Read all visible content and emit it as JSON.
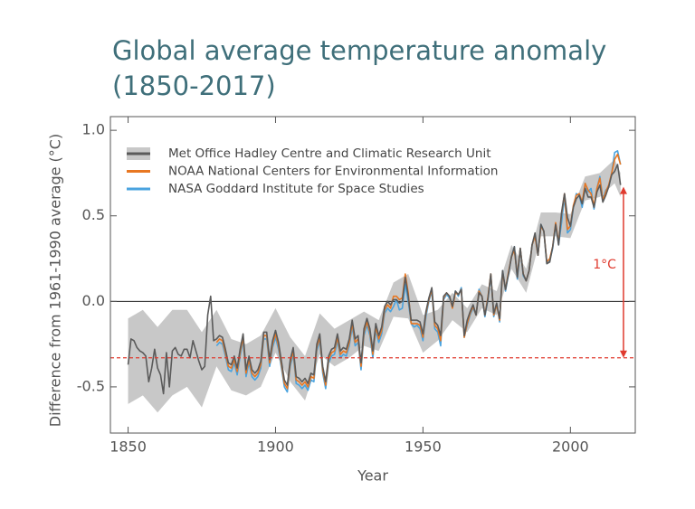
{
  "chart_data": {
    "type": "line",
    "title": [
      "Global average temperature anomaly",
      "(1850-2017)"
    ],
    "xlabel": "Year",
    "ylabel": "Difference from 1961-1990 average (°C)",
    "xlim": [
      1844,
      2022
    ],
    "ylim": [
      -0.77,
      1.08
    ],
    "xticks": [
      1850,
      1900,
      1950,
      2000
    ],
    "yticks": [
      {
        "value": 1.0,
        "label": "1.0"
      },
      {
        "value": 0.5,
        "label": "0.5"
      },
      {
        "value": 0.0,
        "label": "0.0"
      },
      {
        "value": -0.5,
        "label": "-0.5"
      }
    ],
    "zero_line": 0,
    "reference_line": {
      "value": -0.33,
      "color": "#e03a2e"
    },
    "annotation": {
      "text": "1°C",
      "x": 2018,
      "from": -0.33,
      "to": 0.67,
      "color": "#e03a2e"
    },
    "band": {
      "color": "#c8c8c8",
      "x": [
        1850,
        1855,
        1860,
        1865,
        1870,
        1875,
        1880,
        1885,
        1890,
        1895,
        1900,
        1905,
        1910,
        1915,
        1920,
        1925,
        1930,
        1935,
        1940,
        1945,
        1950,
        1955,
        1960,
        1965,
        1970,
        1975,
        1980,
        1985,
        1990,
        1995,
        2000,
        2005,
        2010,
        2015,
        2017
      ],
      "lower": [
        -0.6,
        -0.55,
        -0.65,
        -0.55,
        -0.5,
        -0.62,
        -0.38,
        -0.52,
        -0.55,
        -0.5,
        -0.3,
        -0.47,
        -0.58,
        -0.31,
        -0.38,
        -0.33,
        -0.26,
        -0.29,
        -0.09,
        -0.1,
        -0.3,
        -0.23,
        -0.11,
        -0.18,
        -0.04,
        -0.08,
        0.19,
        0.05,
        0.38,
        0.38,
        0.37,
        0.59,
        0.61,
        0.69,
        0.61
      ],
      "upper": [
        -0.1,
        -0.05,
        -0.15,
        -0.05,
        -0.05,
        -0.18,
        -0.05,
        -0.22,
        -0.25,
        -0.2,
        -0.04,
        -0.21,
        -0.32,
        -0.07,
        -0.16,
        -0.11,
        -0.06,
        -0.11,
        0.11,
        0.16,
        -0.08,
        -0.05,
        0.05,
        -0.04,
        0.1,
        0.06,
        0.33,
        0.19,
        0.52,
        0.52,
        0.51,
        0.73,
        0.75,
        0.83,
        0.75
      ]
    },
    "x_start": 1850,
    "series": [
      {
        "name": "Met Office Hadley Centre and Climatic Research Unit",
        "color": "#5a5a5a",
        "values": [
          -0.37,
          -0.22,
          -0.23,
          -0.27,
          -0.29,
          -0.3,
          -0.32,
          -0.47,
          -0.39,
          -0.28,
          -0.39,
          -0.43,
          -0.54,
          -0.3,
          -0.5,
          -0.29,
          -0.27,
          -0.31,
          -0.32,
          -0.28,
          -0.28,
          -0.33,
          -0.23,
          -0.29,
          -0.35,
          -0.4,
          -0.38,
          -0.08,
          0.03,
          -0.23,
          -0.22,
          -0.2,
          -0.21,
          -0.28,
          -0.36,
          -0.37,
          -0.32,
          -0.39,
          -0.28,
          -0.19,
          -0.4,
          -0.32,
          -0.4,
          -0.42,
          -0.4,
          -0.35,
          -0.18,
          -0.18,
          -0.34,
          -0.23,
          -0.17,
          -0.24,
          -0.35,
          -0.46,
          -0.49,
          -0.34,
          -0.27,
          -0.44,
          -0.45,
          -0.47,
          -0.45,
          -0.48,
          -0.42,
          -0.43,
          -0.25,
          -0.19,
          -0.38,
          -0.47,
          -0.32,
          -0.28,
          -0.27,
          -0.19,
          -0.29,
          -0.27,
          -0.28,
          -0.22,
          -0.11,
          -0.22,
          -0.2,
          -0.36,
          -0.16,
          -0.1,
          -0.16,
          -0.29,
          -0.13,
          -0.2,
          -0.15,
          -0.03,
          -0.0,
          -0.02,
          0.01,
          0.01,
          -0.01,
          -0.0,
          0.14,
          0.03,
          -0.11,
          -0.11,
          -0.11,
          -0.12,
          -0.19,
          -0.06,
          0.02,
          0.08,
          -0.12,
          -0.14,
          -0.2,
          0.03,
          0.05,
          0.03,
          -0.03,
          0.06,
          0.04,
          0.07,
          -0.2,
          -0.11,
          -0.06,
          -0.02,
          -0.08,
          0.05,
          0.03,
          -0.08,
          0.01,
          0.16,
          -0.07,
          -0.01,
          -0.1,
          0.18,
          0.07,
          0.16,
          0.26,
          0.32,
          0.14,
          0.31,
          0.16,
          0.12,
          0.18,
          0.33,
          0.4,
          0.27,
          0.45,
          0.41,
          0.22,
          0.23,
          0.32,
          0.45,
          0.33,
          0.52,
          0.63,
          0.49,
          0.44,
          0.55,
          0.6,
          0.62,
          0.57,
          0.66,
          0.61,
          0.61,
          0.55,
          0.64,
          0.68,
          0.58,
          0.62,
          0.67,
          0.74,
          0.76,
          0.8,
          0.68
        ]
      },
      {
        "name": "NOAA National Centers for Environmental Information",
        "color": "#e87722",
        "values": [
          null,
          null,
          null,
          null,
          null,
          null,
          null,
          null,
          null,
          null,
          null,
          null,
          null,
          null,
          null,
          null,
          null,
          null,
          null,
          null,
          null,
          null,
          null,
          null,
          null,
          null,
          null,
          null,
          null,
          null,
          -0.24,
          -0.22,
          -0.23,
          -0.3,
          -0.38,
          -0.39,
          -0.34,
          -0.41,
          -0.3,
          -0.21,
          -0.42,
          -0.34,
          -0.42,
          -0.44,
          -0.42,
          -0.37,
          -0.2,
          -0.2,
          -0.36,
          -0.25,
          -0.19,
          -0.26,
          -0.37,
          -0.48,
          -0.51,
          -0.36,
          -0.29,
          -0.46,
          -0.47,
          -0.49,
          -0.47,
          -0.5,
          -0.44,
          -0.45,
          -0.27,
          -0.21,
          -0.4,
          -0.49,
          -0.34,
          -0.3,
          -0.29,
          -0.21,
          -0.31,
          -0.29,
          -0.3,
          -0.24,
          -0.13,
          -0.24,
          -0.22,
          -0.38,
          -0.18,
          -0.12,
          -0.18,
          -0.31,
          -0.15,
          -0.22,
          -0.17,
          -0.05,
          -0.02,
          -0.04,
          0.03,
          0.03,
          0.01,
          0.02,
          0.16,
          0.05,
          -0.13,
          -0.13,
          -0.13,
          -0.14,
          -0.21,
          -0.07,
          0.01,
          0.07,
          -0.14,
          -0.16,
          -0.23,
          0.02,
          0.05,
          0.03,
          -0.04,
          0.05,
          0.04,
          0.07,
          -0.21,
          -0.13,
          -0.07,
          -0.03,
          -0.08,
          0.06,
          0.03,
          -0.08,
          0.02,
          0.16,
          -0.08,
          -0.02,
          -0.11,
          0.17,
          0.07,
          0.17,
          0.26,
          0.3,
          0.15,
          0.31,
          0.16,
          0.12,
          0.18,
          0.33,
          0.38,
          0.27,
          0.44,
          0.41,
          0.23,
          0.25,
          0.32,
          0.46,
          0.34,
          0.51,
          0.63,
          0.42,
          0.44,
          0.56,
          0.62,
          0.63,
          0.58,
          0.69,
          0.65,
          0.63,
          0.56,
          0.66,
          0.72,
          0.59,
          0.64,
          0.68,
          0.75,
          0.83,
          0.86,
          0.8
        ]
      },
      {
        "name": "NASA Goddard Institute for Space Studies",
        "color": "#4aa3df",
        "values": [
          null,
          null,
          null,
          null,
          null,
          null,
          null,
          null,
          null,
          null,
          null,
          null,
          null,
          null,
          null,
          null,
          null,
          null,
          null,
          null,
          null,
          null,
          null,
          null,
          null,
          null,
          null,
          null,
          null,
          null,
          -0.26,
          -0.24,
          -0.25,
          -0.32,
          -0.4,
          -0.41,
          -0.36,
          -0.43,
          -0.32,
          -0.23,
          -0.44,
          -0.36,
          -0.44,
          -0.46,
          -0.44,
          -0.39,
          -0.22,
          -0.22,
          -0.38,
          -0.27,
          -0.21,
          -0.28,
          -0.39,
          -0.5,
          -0.53,
          -0.38,
          -0.31,
          -0.48,
          -0.49,
          -0.51,
          -0.49,
          -0.52,
          -0.46,
          -0.47,
          -0.29,
          -0.23,
          -0.42,
          -0.51,
          -0.36,
          -0.32,
          -0.31,
          -0.23,
          -0.33,
          -0.31,
          -0.32,
          -0.26,
          -0.15,
          -0.26,
          -0.24,
          -0.4,
          -0.2,
          -0.14,
          -0.2,
          -0.33,
          -0.17,
          -0.24,
          -0.19,
          -0.07,
          -0.04,
          -0.06,
          -0.03,
          0.01,
          -0.05,
          -0.04,
          0.1,
          0.0,
          -0.13,
          -0.15,
          -0.14,
          -0.16,
          -0.23,
          -0.09,
          0.0,
          0.06,
          -0.16,
          -0.18,
          -0.26,
          0.01,
          0.04,
          0.02,
          -0.03,
          0.06,
          0.03,
          0.08,
          -0.21,
          -0.14,
          -0.08,
          -0.04,
          -0.08,
          0.07,
          0.03,
          -0.09,
          0.01,
          0.15,
          -0.09,
          -0.02,
          -0.12,
          0.18,
          0.06,
          0.16,
          0.26,
          0.32,
          0.13,
          0.31,
          0.15,
          0.12,
          0.18,
          0.33,
          0.39,
          0.27,
          0.45,
          0.41,
          0.22,
          0.24,
          0.31,
          0.45,
          0.33,
          0.46,
          0.61,
          0.4,
          0.42,
          0.55,
          0.63,
          0.62,
          0.55,
          0.69,
          0.64,
          0.66,
          0.54,
          0.66,
          0.73,
          0.6,
          0.65,
          0.67,
          0.75,
          0.87,
          0.88,
          0.8
        ]
      }
    ]
  }
}
